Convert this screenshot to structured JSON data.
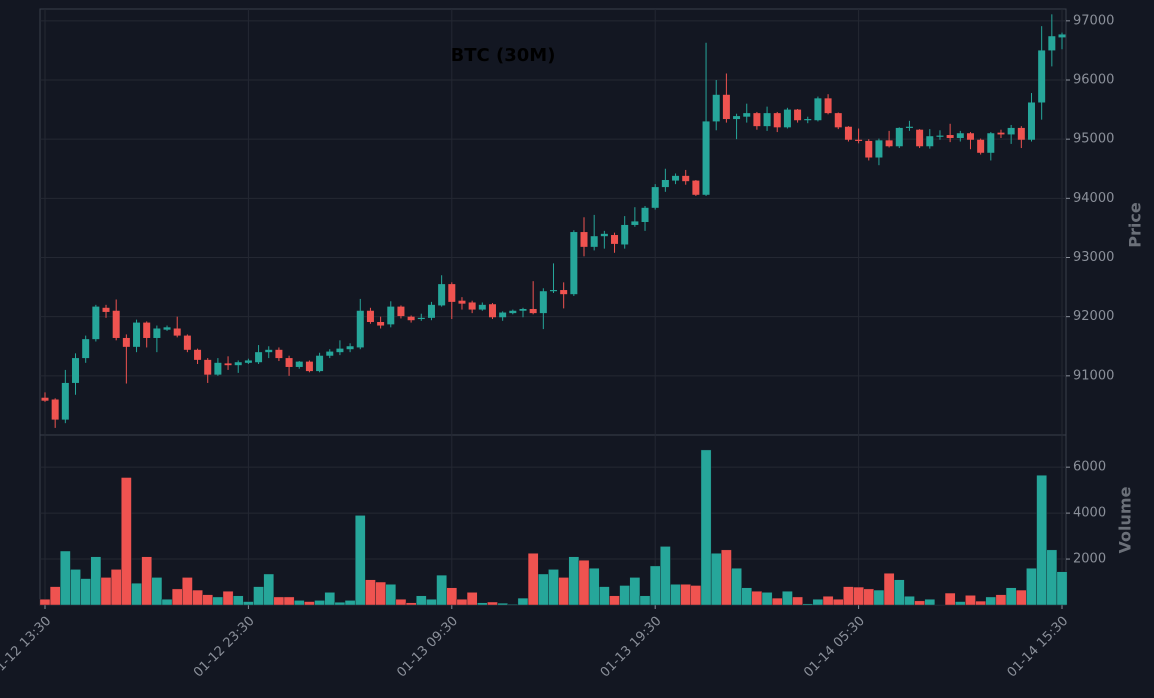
{
  "chart_data": {
    "type": "candlestick",
    "title": "BTC (30M)",
    "categories": [
      "01-12 13:30",
      null,
      null,
      null,
      null,
      null,
      null,
      null,
      null,
      null,
      null,
      null,
      null,
      null,
      null,
      null,
      null,
      null,
      null,
      null,
      "01-12 23:30",
      null,
      null,
      null,
      null,
      null,
      null,
      null,
      null,
      null,
      null,
      null,
      null,
      null,
      null,
      null,
      null,
      null,
      null,
      null,
      "01-13 09:30",
      null,
      null,
      null,
      null,
      null,
      null,
      null,
      null,
      null,
      null,
      null,
      null,
      null,
      null,
      null,
      null,
      null,
      null,
      null,
      "01-13 19:30",
      null,
      null,
      null,
      null,
      null,
      null,
      null,
      null,
      null,
      null,
      null,
      null,
      null,
      null,
      null,
      null,
      null,
      null,
      null,
      "01-14 05:30",
      null,
      null,
      null,
      null,
      null,
      null,
      null,
      null,
      null,
      null,
      null,
      null,
      null,
      null,
      null,
      null,
      null,
      null,
      null,
      "01-14 15:30"
    ],
    "open": [
      90630,
      90600,
      90260,
      90880,
      91300,
      91620,
      92150,
      92100,
      91640,
      91490,
      91900,
      91640,
      91780,
      91800,
      91680,
      91440,
      91270,
      91020,
      91210,
      91180,
      91220,
      91230,
      91400,
      91440,
      91300,
      91150,
      91240,
      91080,
      91340,
      91400,
      91450,
      91480,
      92100,
      91910,
      91870,
      92170,
      92000,
      91960,
      91980,
      92190,
      92550,
      92270,
      92240,
      92120,
      92210,
      91990,
      92060,
      92100,
      92130,
      92060,
      92430,
      92450,
      92380,
      93430,
      93180,
      93360,
      93380,
      93220,
      93550,
      93600,
      93840,
      94190,
      94300,
      94380,
      94300,
      94060,
      95300,
      95750,
      95340,
      95380,
      95440,
      95220,
      95440,
      95200,
      95500,
      95320,
      95320,
      95690,
      95440,
      95210,
      94990,
      94970,
      94690,
      94980,
      94880,
      95190,
      95160,
      94880,
      95040,
      95070,
      95020,
      95100,
      94990,
      94770,
      95110,
      95080,
      95190,
      94990,
      95620,
      96500,
      96720
    ],
    "high": [
      90720,
      90620,
      91100,
      91380,
      91680,
      92200,
      92200,
      92290,
      91700,
      91950,
      91920,
      91850,
      91850,
      92000,
      91700,
      91460,
      91300,
      91300,
      91330,
      91260,
      91290,
      91520,
      91500,
      91480,
      91340,
      91250,
      91260,
      91390,
      91450,
      91600,
      91550,
      92300,
      92150,
      92000,
      92260,
      92190,
      92020,
      92050,
      92250,
      92700,
      92580,
      92330,
      92270,
      92240,
      92230,
      92090,
      92120,
      92150,
      92600,
      92480,
      92900,
      92580,
      93460,
      93680,
      93720,
      93450,
      93420,
      93700,
      93850,
      93870,
      94240,
      94500,
      94420,
      94480,
      94310,
      96630,
      96000,
      96110,
      95430,
      95600,
      95460,
      95550,
      95460,
      95530,
      95510,
      95380,
      95720,
      95760,
      95450,
      95220,
      95180,
      95000,
      95010,
      95140,
      95200,
      95310,
      95170,
      95170,
      95150,
      95260,
      95140,
      95120,
      95010,
      95120,
      95160,
      95240,
      95220,
      95780,
      96910,
      97110,
      96800
    ],
    "low": [
      90560,
      90120,
      90200,
      90680,
      91220,
      91580,
      91980,
      91600,
      90870,
      91400,
      91480,
      91400,
      91760,
      91650,
      91400,
      91200,
      90880,
      91000,
      91100,
      91050,
      91200,
      91200,
      91300,
      91250,
      91000,
      91120,
      91060,
      91060,
      91300,
      91350,
      91400,
      91450,
      91880,
      91800,
      91820,
      91970,
      91900,
      91930,
      91940,
      92170,
      91960,
      92120,
      92060,
      92100,
      91960,
      91930,
      92040,
      91990,
      92040,
      91790,
      92400,
      92140,
      92350,
      93020,
      93120,
      93150,
      93080,
      93150,
      93520,
      93450,
      93810,
      94110,
      94240,
      94230,
      94040,
      94040,
      95150,
      95280,
      95000,
      95280,
      95160,
      95140,
      95120,
      95180,
      95280,
      95270,
      95300,
      95420,
      95170,
      94960,
      94930,
      94640,
      94560,
      94860,
      94850,
      95140,
      94850,
      94840,
      94990,
      94950,
      94960,
      94830,
      94740,
      94640,
      95020,
      94920,
      94850,
      94960,
      95330,
      96230,
      96520
    ],
    "close": [
      90580,
      90260,
      90880,
      91300,
      91620,
      92170,
      92080,
      91640,
      91490,
      91900,
      91640,
      91800,
      91820,
      91680,
      91440,
      91270,
      91020,
      91220,
      91180,
      91230,
      91260,
      91400,
      91440,
      91300,
      91150,
      91240,
      91080,
      91340,
      91410,
      91460,
      91500,
      92100,
      91910,
      91850,
      92170,
      92010,
      91940,
      91980,
      92200,
      92550,
      92250,
      92220,
      92120,
      92200,
      91990,
      92070,
      92100,
      92130,
      92060,
      92430,
      92450,
      92380,
      93430,
      93180,
      93360,
      93400,
      93230,
      93550,
      93610,
      93840,
      94190,
      94310,
      94380,
      94290,
      94060,
      95300,
      95750,
      95340,
      95390,
      95440,
      95220,
      95440,
      95200,
      95500,
      95320,
      95340,
      95690,
      95440,
      95200,
      94990,
      94970,
      94690,
      94980,
      94880,
      95190,
      95210,
      94880,
      95050,
      95060,
      95020,
      95100,
      94990,
      94770,
      95100,
      95080,
      95190,
      94990,
      95620,
      96500,
      96740,
      96770
    ],
    "volume": [
      250,
      800,
      2350,
      1550,
      1150,
      2100,
      1200,
      1550,
      5550,
      950,
      2100,
      1200,
      250,
      700,
      1200,
      650,
      450,
      350,
      600,
      400,
      150,
      800,
      1350,
      350,
      350,
      200,
      150,
      200,
      550,
      120,
      200,
      3900,
      1100,
      1000,
      900,
      250,
      100,
      400,
      250,
      1300,
      750,
      250,
      550,
      100,
      130,
      80,
      30,
      300,
      2250,
      1350,
      1550,
      1200,
      2100,
      1950,
      1600,
      800,
      400,
      850,
      1200,
      400,
      1700,
      2550,
      900,
      900,
      850,
      6750,
      2250,
      2400,
      1600,
      750,
      600,
      550,
      300,
      600,
      350,
      50,
      250,
      380,
      250,
      800,
      780,
      700,
      650,
      1380,
      1100,
      380,
      180,
      250,
      20,
      520,
      150,
      420,
      170,
      350,
      450,
      750,
      650,
      1600,
      5650,
      2400,
      1450
    ],
    "up_color": "#26a69a",
    "down_color": "#ef5350",
    "ylabel": "Price",
    "ylim": [
      90000,
      97200
    ],
    "yticks": [
      91000,
      92000,
      93000,
      94000,
      95000,
      96000,
      97000
    ],
    "volume_label": "Volume",
    "volume_ylim": [
      0,
      7400
    ],
    "volume_ticks": [
      2000,
      4000,
      6000
    ],
    "grid": true
  }
}
